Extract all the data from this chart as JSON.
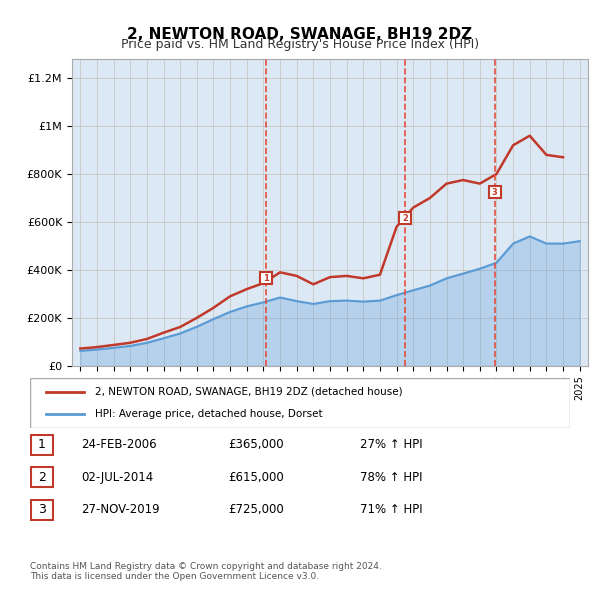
{
  "title": "2, NEWTON ROAD, SWANAGE, BH19 2DZ",
  "subtitle": "Price paid vs. HM Land Registry's House Price Index (HPI)",
  "background_color": "#dce9f5",
  "plot_bg_color": "#dce9f5",
  "hpi_years": [
    1995,
    1996,
    1997,
    1998,
    1999,
    2000,
    2001,
    2002,
    2003,
    2004,
    2005,
    2006,
    2007,
    2008,
    2009,
    2010,
    2011,
    2012,
    2013,
    2014,
    2015,
    2016,
    2017,
    2018,
    2019,
    2020,
    2021,
    2022,
    2023,
    2024,
    2025
  ],
  "hpi_values": [
    62000,
    68000,
    75000,
    83000,
    96000,
    115000,
    135000,
    163000,
    195000,
    225000,
    248000,
    265000,
    285000,
    270000,
    258000,
    270000,
    272000,
    268000,
    272000,
    295000,
    315000,
    335000,
    365000,
    385000,
    405000,
    430000,
    510000,
    540000,
    510000,
    510000,
    520000
  ],
  "price_years": [
    1995,
    1996,
    1997,
    1998,
    1999,
    2000,
    2001,
    2002,
    2003,
    2004,
    2005,
    2006,
    2007,
    2008,
    2009,
    2010,
    2011,
    2012,
    2013,
    2014,
    2015,
    2016,
    2017,
    2018,
    2019,
    2020,
    2021,
    2022,
    2023,
    2024
  ],
  "price_values": [
    72000,
    78000,
    87000,
    96000,
    112000,
    138000,
    162000,
    200000,
    242000,
    290000,
    320000,
    345000,
    390000,
    375000,
    340000,
    370000,
    375000,
    365000,
    380000,
    580000,
    660000,
    700000,
    760000,
    775000,
    760000,
    800000,
    920000,
    960000,
    880000,
    870000
  ],
  "sale_points": [
    {
      "year": 2006.15,
      "price": 365000,
      "label": "1"
    },
    {
      "year": 2014.5,
      "price": 615000,
      "label": "2"
    },
    {
      "year": 2019.9,
      "price": 725000,
      "label": "3"
    }
  ],
  "vline_years": [
    2006.15,
    2014.5,
    2019.9
  ],
  "legend_price_label": "2, NEWTON ROAD, SWANAGE, BH19 2DZ (detached house)",
  "legend_hpi_label": "HPI: Average price, detached house, Dorset",
  "table_rows": [
    {
      "num": "1",
      "date": "24-FEB-2006",
      "price": "£365,000",
      "change": "27% ↑ HPI"
    },
    {
      "num": "2",
      "date": "02-JUL-2014",
      "price": "£615,000",
      "change": "78% ↑ HPI"
    },
    {
      "num": "3",
      "date": "27-NOV-2019",
      "price": "£725,000",
      "change": "71% ↑ HPI"
    }
  ],
  "footer": "Contains HM Land Registry data © Crown copyright and database right 2024.\nThis data is licensed under the Open Government Licence v3.0.",
  "ylim": [
    0,
    1280000
  ],
  "yticks": [
    0,
    200000,
    400000,
    600000,
    800000,
    1000000,
    1200000
  ],
  "ytick_labels": [
    "£0",
    "£200K",
    "£400K",
    "£600K",
    "£800K",
    "£1M",
    "£1.2M"
  ],
  "xlim": [
    1994.5,
    2025.5
  ]
}
